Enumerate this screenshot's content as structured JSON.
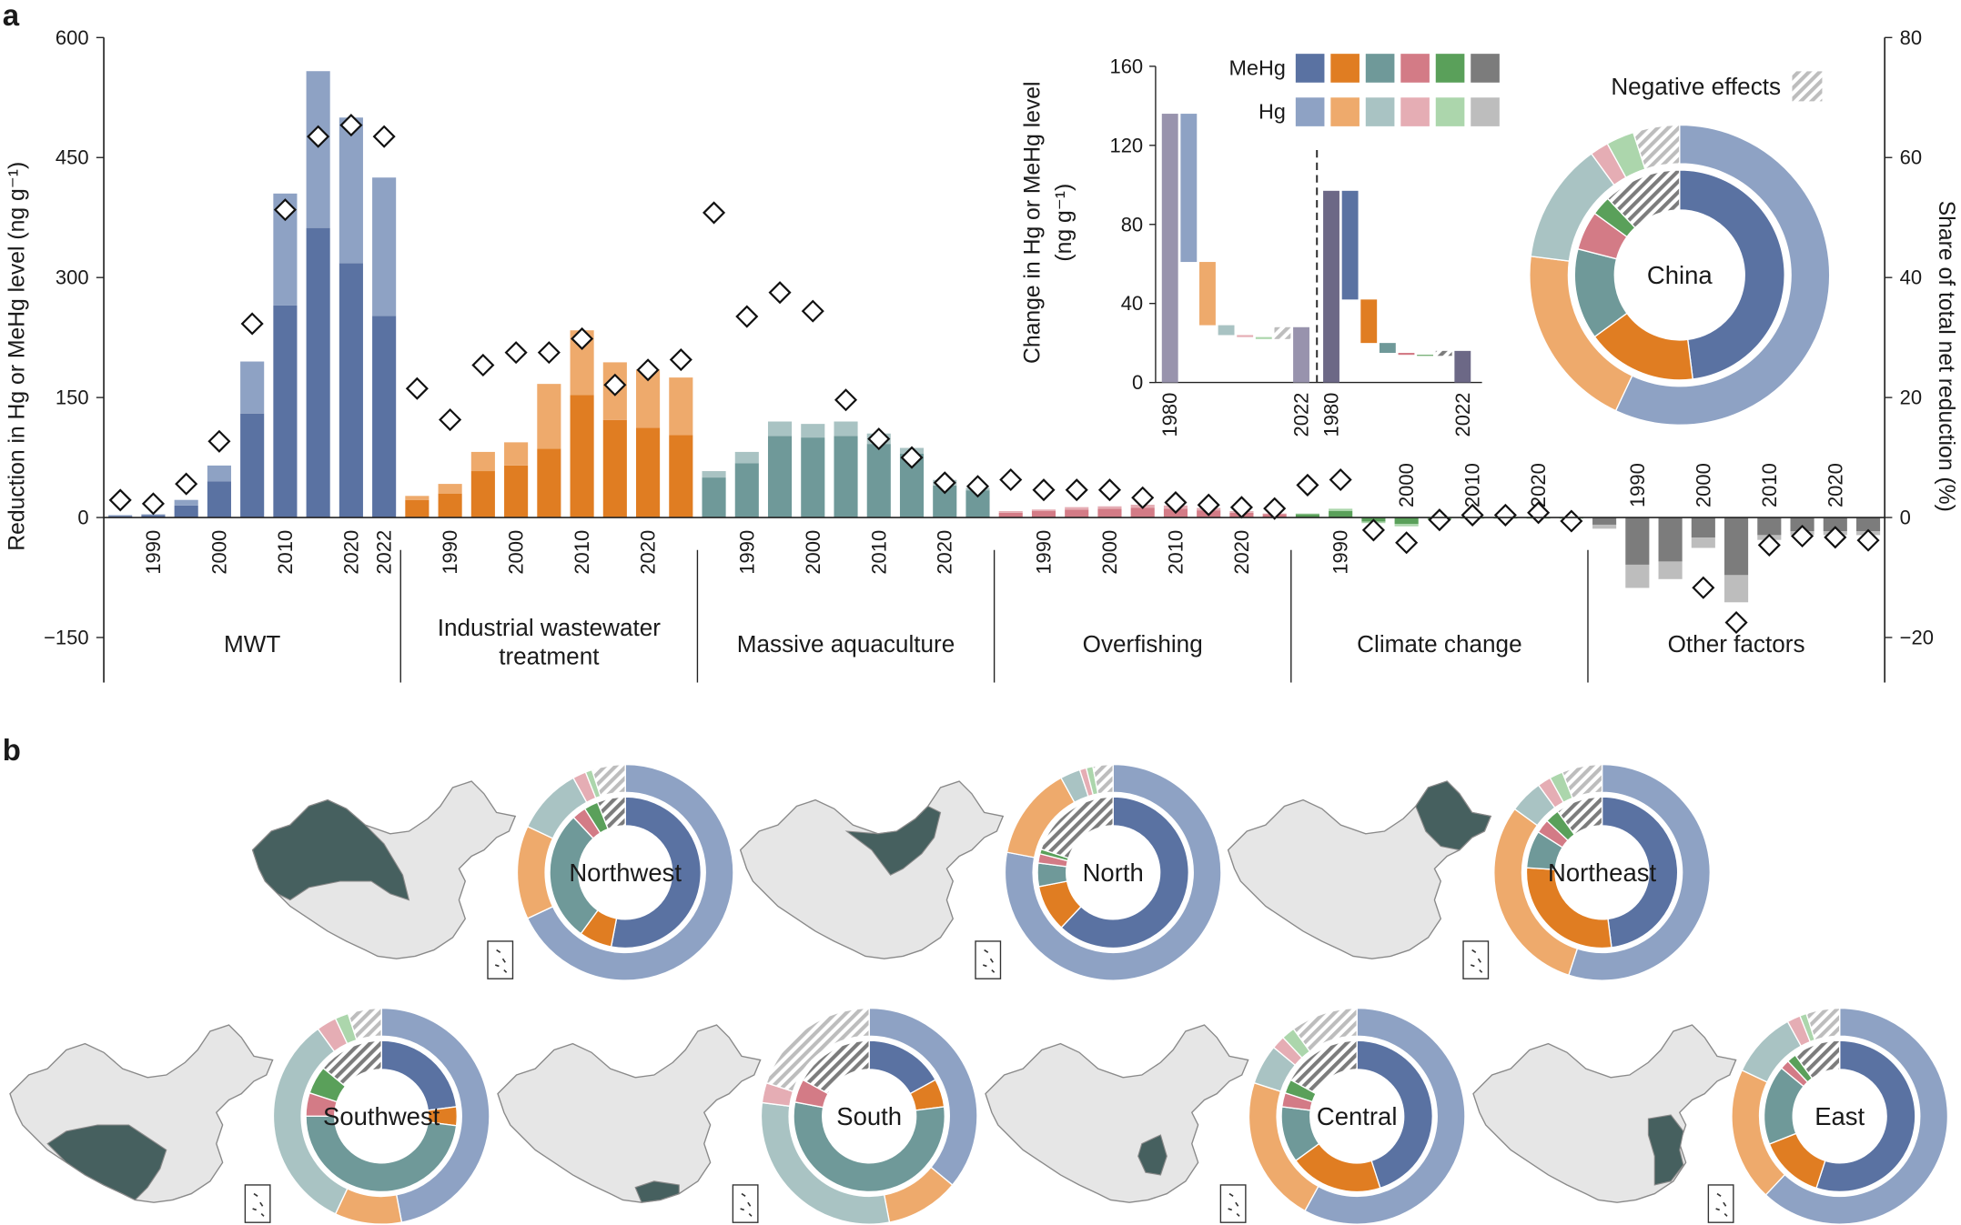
{
  "chart_data": [
    {
      "type": "grouped-bar",
      "panel": "a",
      "ylabel": "Reduction in Hg or MeHg level (ng g⁻¹)",
      "y2label": "Share of total net reduction (%)",
      "ylim": [
        -206.25,
        600
      ],
      "yticks": [
        {
          "value": -150,
          "label": "−150"
        },
        0,
        150,
        300,
        450,
        600
      ],
      "y2lim": [
        -27.5,
        80
      ],
      "y2ticks": [
        {
          "value": -20,
          "label": "−20"
        },
        0,
        20,
        40,
        60,
        80
      ],
      "groups": [
        {
          "name": "MWT",
          "categories": [
            null,
            "1990",
            null,
            "2000",
            null,
            "2010",
            null,
            "2020",
            "2022"
          ],
          "mehg": {
            "color": "#5a72a2",
            "values": [
              2,
              3,
              15,
              45,
              130,
              265,
              362,
              318,
              252
            ]
          },
          "hg": {
            "color": "#8ea2c4",
            "values": [
              1,
              1,
              7,
              20,
              65,
              140,
              196,
              182,
              173
            ]
          },
          "share": [
            2.9,
            2.3,
            5.6,
            12.7,
            32.3,
            51.3,
            63.5,
            65.4,
            63.5
          ]
        },
        {
          "name": [
            "Industrial wastewater",
            "treatment"
          ],
          "categories": [
            null,
            "1990",
            null,
            "2000",
            null,
            "2010",
            null,
            "2020",
            null
          ],
          "mehg": {
            "color": "#e07d22",
            "values": [
              22,
              30,
              58,
              65,
              86,
              153,
              122,
              112,
              103
            ]
          },
          "hg": {
            "color": "#eeaa6c",
            "values": [
              5,
              12,
              24,
              29,
              81,
              81,
              72,
              73,
              72
            ]
          },
          "share": [
            21.5,
            16.3,
            25.4,
            27.5,
            27.5,
            29.8,
            22.1,
            24.6,
            26.3
          ]
        },
        {
          "name": "Massive aquaculture",
          "categories": [
            null,
            "1990",
            null,
            "2000",
            null,
            "2010",
            null,
            "2020",
            null
          ],
          "mehg": {
            "color": "#6f9999",
            "values": [
              50,
              68,
              102,
              100,
              102,
              92,
              80,
              40,
              34
            ]
          },
          "hg": {
            "color": "#a9c3c3",
            "values": [
              8,
              14,
              18,
              17,
              18,
              13,
              7,
              7,
              3
            ]
          },
          "share": [
            50.8,
            33.5,
            37.5,
            34.4,
            19.6,
            13.1,
            10,
            5.8,
            5.2
          ]
        },
        {
          "name": "Overfishing",
          "categories": [
            null,
            "1990",
            null,
            "2000",
            null,
            "2010",
            null,
            "2020",
            null
          ],
          "mehg": {
            "color": "#d37b86",
            "values": [
              6,
              8,
              10,
              11,
              12,
              11,
              9,
              6,
              4
            ]
          },
          "hg": {
            "color": "#e5adb4",
            "values": [
              2,
              2,
              3,
              3,
              4,
              4,
              3,
              2,
              1
            ]
          },
          "share": [
            6.3,
            4.6,
            4.6,
            4.6,
            3.3,
            2.5,
            2.1,
            1.7,
            1.5
          ]
        },
        {
          "name": "Climate change",
          "categories": [
            null,
            "1990",
            null,
            "2000",
            null,
            "2010",
            null,
            "2020",
            null
          ],
          "mehg": {
            "color": "#5aa05a",
            "values": [
              4,
              8,
              -5,
              -8,
              -2,
              -1,
              -1,
              -1,
              -1
            ]
          },
          "hg": {
            "color": "#acd6ac",
            "values": [
              1,
              3,
              -2,
              -3,
              -1,
              -0.5,
              -0.5,
              -0.5,
              -0.5
            ]
          },
          "share": [
            5.4,
            6.3,
            -2.1,
            -4.2,
            -0.4,
            0.4,
            0.4,
            0.8,
            -0.6
          ]
        },
        {
          "name": "Other factors",
          "categories": [
            null,
            "1990",
            null,
            "2000",
            null,
            "2010",
            null,
            "2020",
            null
          ],
          "mehg": {
            "color": "#7c7c7c",
            "values": [
              -9,
              -59,
              -55,
              -25,
              -72,
              -22,
              -17,
              -17,
              -17
            ]
          },
          "hg": {
            "color": "#bdbdbd",
            "values": [
              -5,
              -29,
              -22,
              -13,
              -34,
              -6,
              -5,
              -5,
              -5
            ]
          },
          "share": [
            null,
            null,
            null,
            -11.7,
            -17.5,
            -4.6,
            -3.1,
            -3.3,
            -3.8
          ]
        }
      ]
    },
    {
      "type": "waterfall",
      "ylabel": [
        "Change in Hg or MeHg level",
        "(ng g⁻¹)"
      ],
      "ylim": [
        0,
        160
      ],
      "yticks": [
        0,
        40,
        80,
        120,
        160
      ],
      "legend": [
        "MeHg",
        "Hg"
      ],
      "negative_label": "Negative effects",
      "sides": [
        {
          "series": "hg",
          "color": "#9893ad",
          "x_labels": [
            "1980",
            "2022"
          ],
          "start": 136,
          "deltas": [
            -75,
            -32,
            -5,
            -1,
            -1,
            6
          ],
          "end": 28
        },
        {
          "series": "mehg",
          "color": "#6c6886",
          "x_labels": [
            "1980",
            "2022"
          ],
          "start": 97,
          "deltas": [
            -55,
            -22,
            -5,
            -1,
            -0.5,
            2.5
          ],
          "end": 16
        }
      ]
    },
    {
      "type": "donut",
      "label": "China",
      "outer": [
        57,
        20,
        13,
        2,
        3,
        5
      ],
      "inner": [
        48,
        17,
        14,
        6,
        3,
        12
      ]
    },
    {
      "type": "donut",
      "panel": "b",
      "label": "Northwest",
      "outer": [
        68,
        14,
        10,
        2,
        1,
        5
      ],
      "inner": [
        53,
        7,
        28,
        3,
        3,
        6
      ]
    },
    {
      "type": "donut",
      "label": "North",
      "outer": [
        78,
        14,
        3,
        1,
        1,
        3
      ],
      "inner": [
        62,
        10,
        5,
        2,
        1,
        20
      ]
    },
    {
      "type": "donut",
      "label": "Northeast",
      "outer": [
        55,
        30,
        5,
        2,
        2,
        6
      ],
      "inner": [
        48,
        28,
        8,
        3,
        3,
        10
      ]
    },
    {
      "type": "donut",
      "label": "Southwest",
      "outer": [
        47,
        10,
        33,
        3,
        2,
        5
      ],
      "inner": [
        23,
        4,
        48,
        5,
        6,
        14
      ]
    },
    {
      "type": "donut",
      "label": "South",
      "outer": [
        36,
        11,
        30,
        3,
        0,
        20
      ],
      "inner": [
        17,
        6,
        55,
        5,
        0,
        17
      ]
    },
    {
      "type": "donut",
      "label": "Central",
      "outer": [
        58,
        22,
        6,
        2,
        2,
        10
      ],
      "inner": [
        45,
        20,
        12,
        3,
        3,
        17
      ]
    },
    {
      "type": "donut",
      "label": "East",
      "outer": [
        62,
        20,
        10,
        2,
        1,
        5
      ],
      "inner": [
        55,
        14,
        17,
        2,
        2,
        10
      ]
    }
  ]
}
